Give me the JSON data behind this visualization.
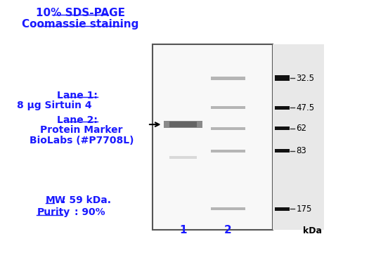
{
  "title_line1": "10% SDS-PAGE",
  "title_line2": "Coomassie staining",
  "lane1_label": "Lane 1",
  "lane1_desc": "8 μg Sirtuin 4",
  "lane2_label": "Lane 2",
  "lane2_desc1": "Protein Marker",
  "lane2_desc2": "BioLabs (#P7708L)",
  "mw_label": "MW",
  "mw_value": ": 59 kDa.",
  "purity_label": "Purity",
  "purity_value": ": 90%",
  "kda_label": "kDa",
  "marker_weights": [
    175,
    83,
    62,
    47.5,
    32.5
  ],
  "lane_numbers": [
    "1",
    "2"
  ],
  "bg_color": "#ffffff",
  "gel_border": "#555555",
  "text_color": "#1a1aff",
  "text_color_dark": "#000000"
}
